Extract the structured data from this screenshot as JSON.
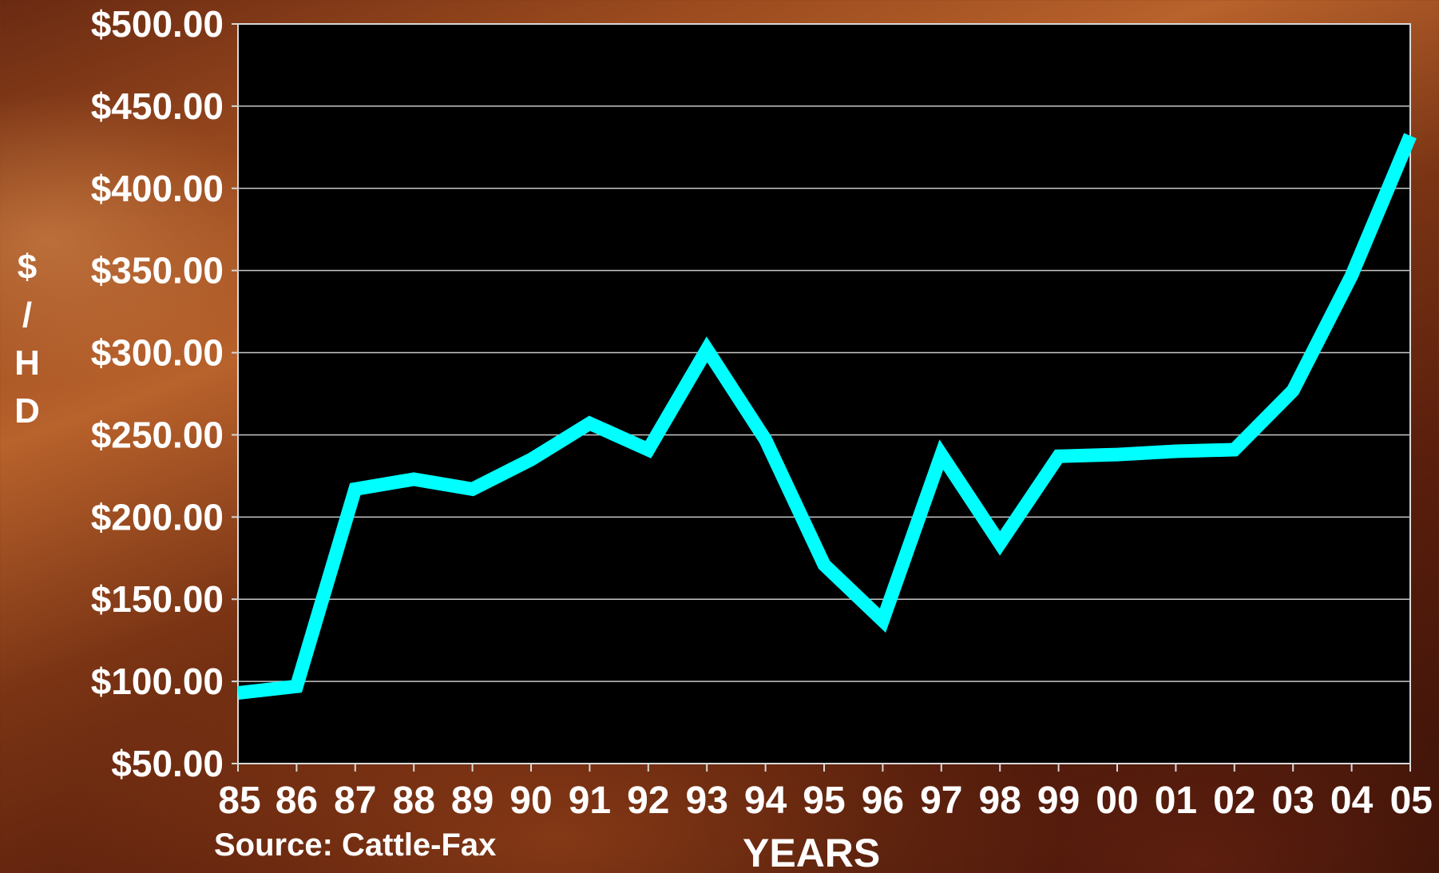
{
  "chart_data": {
    "type": "line",
    "xlabel": "YEARS",
    "ylabel": "$/HD",
    "source": "Source: Cattle-Fax",
    "ylim": [
      50,
      500
    ],
    "y_ticks": [
      "$500.00",
      "$450.00",
      "$400.00",
      "$350.00",
      "$300.00",
      "$250.00",
      "$200.00",
      "$150.00",
      "$100.00",
      "$50.00"
    ],
    "y_tick_values": [
      500,
      450,
      400,
      350,
      300,
      250,
      200,
      150,
      100,
      50
    ],
    "categories": [
      "85",
      "86",
      "87",
      "88",
      "89",
      "90",
      "91",
      "92",
      "93",
      "94",
      "95",
      "96",
      "97",
      "98",
      "99",
      "00",
      "01",
      "02",
      "03",
      "04",
      "05"
    ],
    "values": [
      93,
      97,
      217,
      223,
      217,
      235,
      257,
      241,
      302,
      247,
      171,
      137,
      238,
      184,
      237,
      238,
      240,
      241,
      277,
      347,
      432
    ],
    "grid": true,
    "colors": {
      "line": "#00ffff",
      "plot_background": "#000000",
      "grid": "#c8c8c8",
      "text": "#ffffff"
    }
  }
}
